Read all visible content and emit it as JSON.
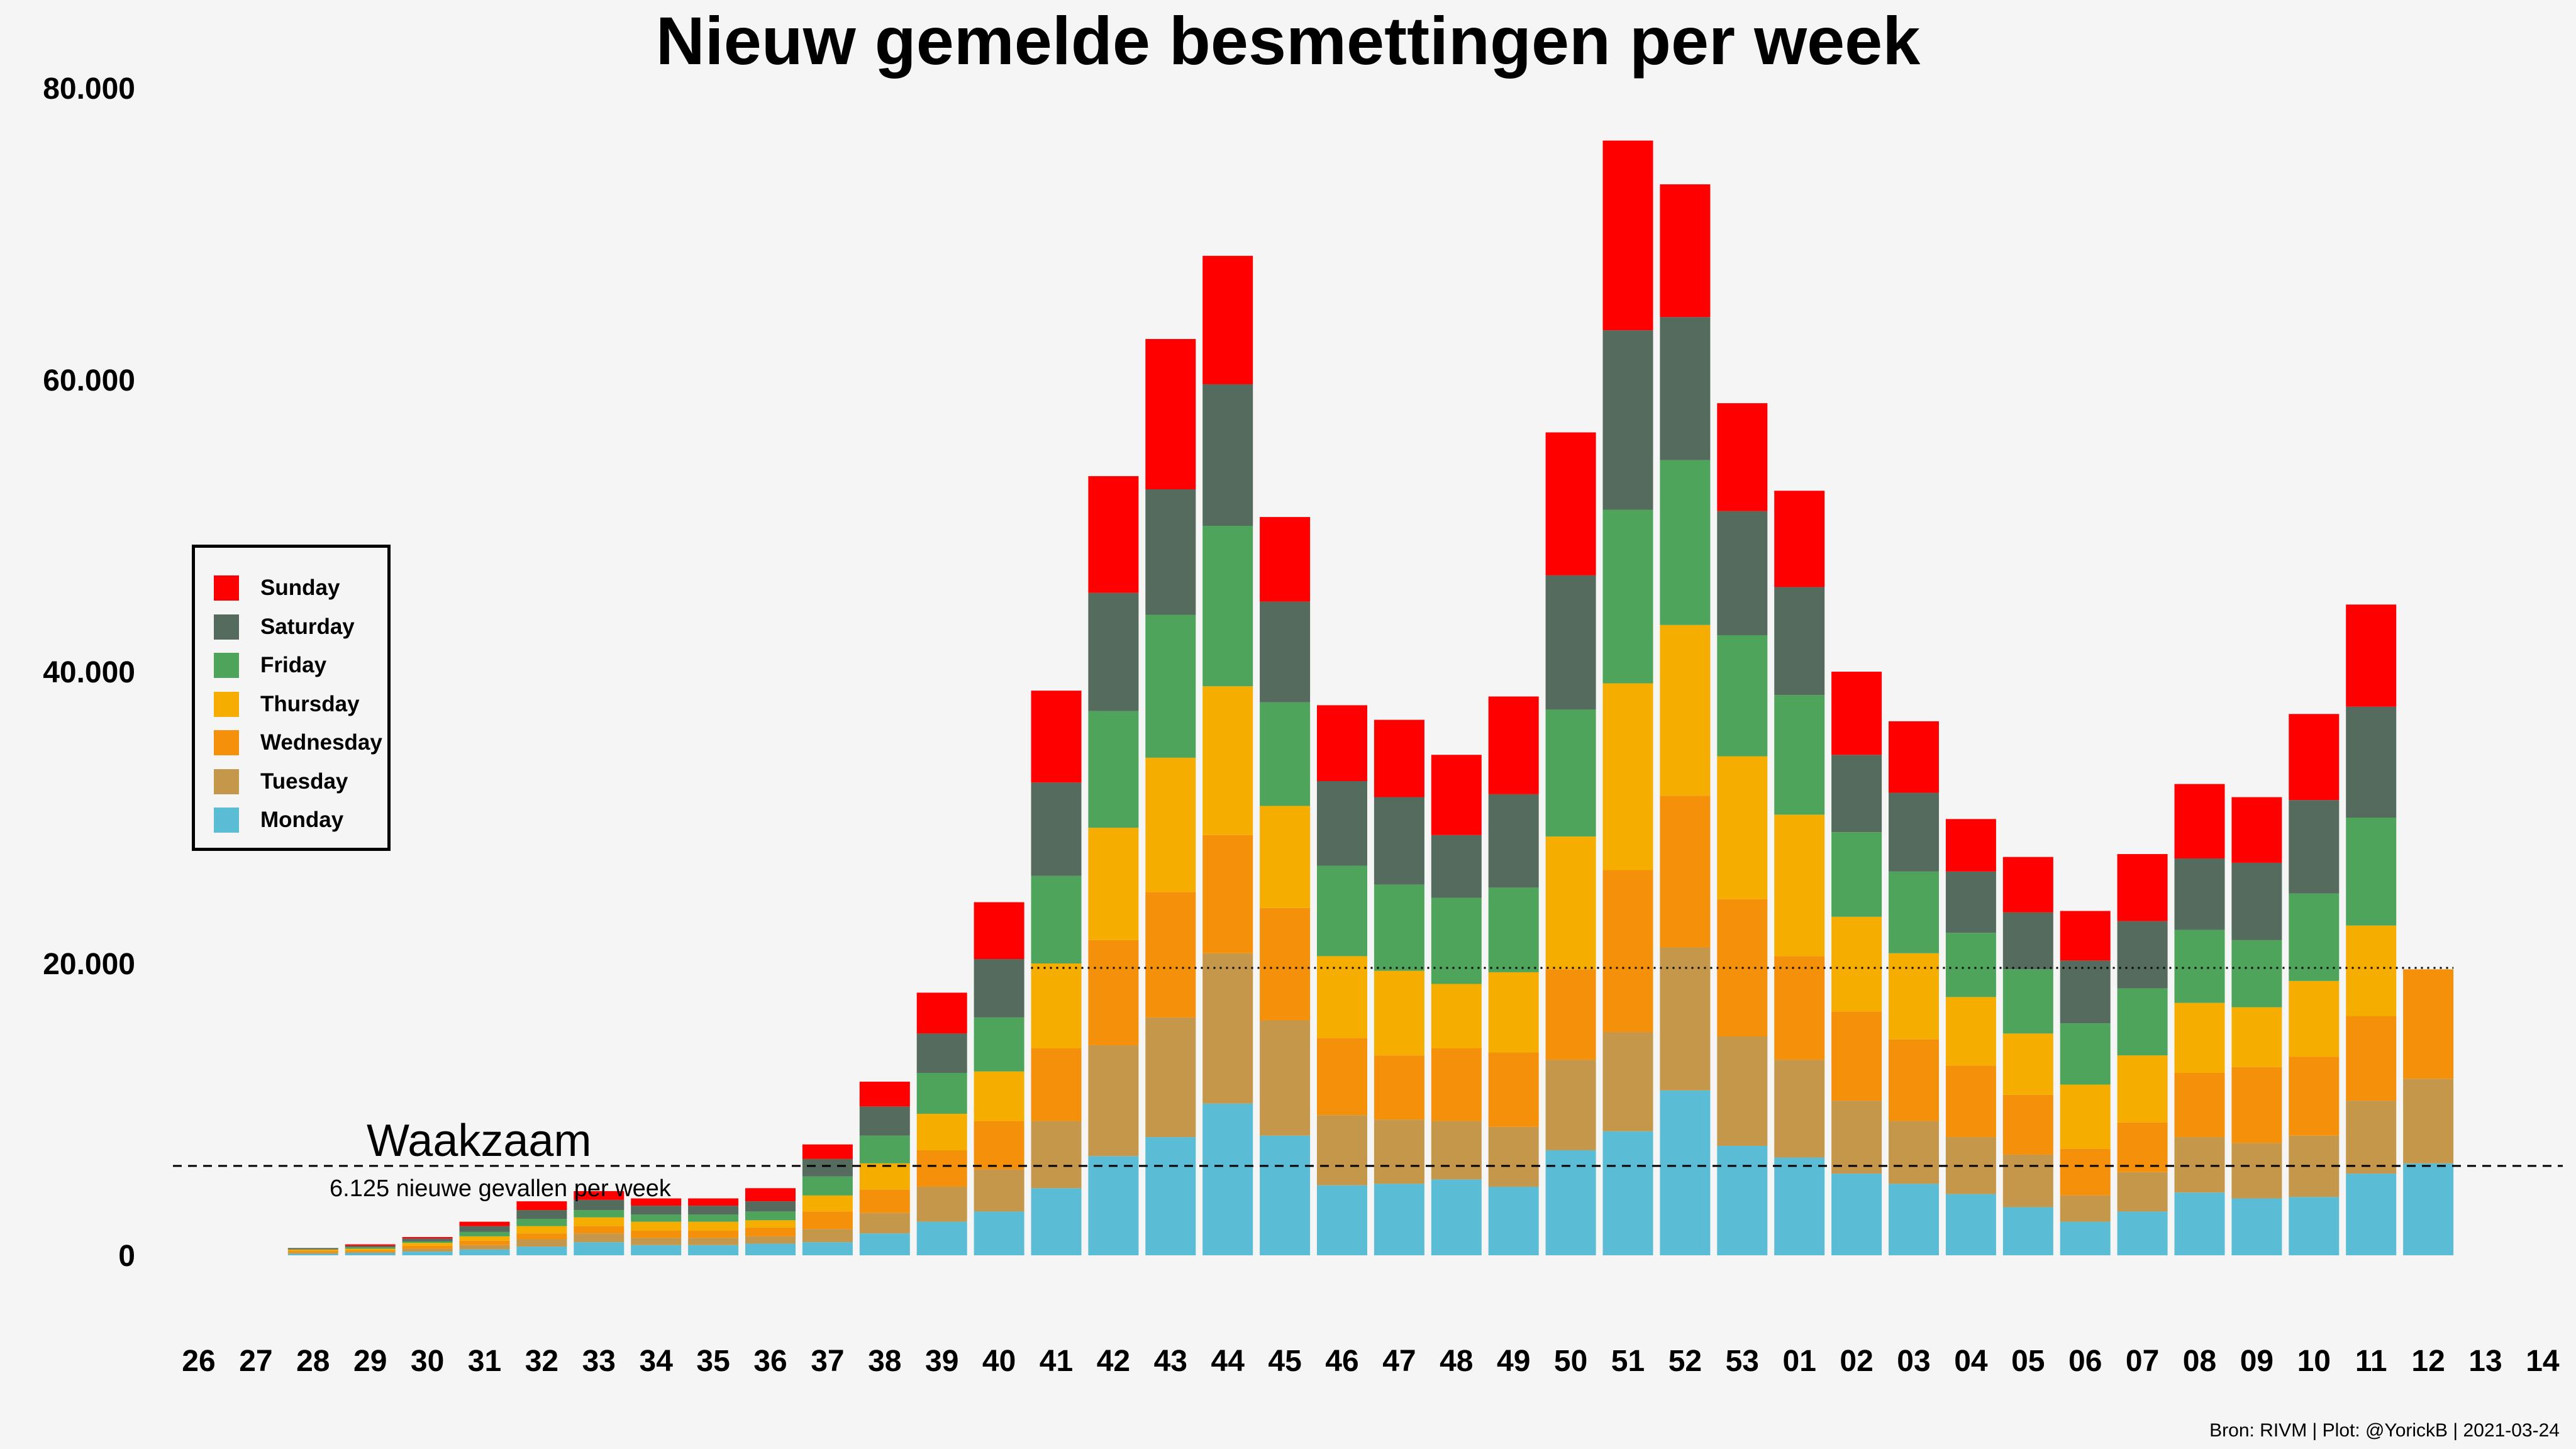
{
  "chart_data": {
    "type": "bar",
    "stacked": true,
    "title": "Nieuw gemelde besmettingen per week",
    "xlabel": "",
    "ylabel": "",
    "ylim": [
      0,
      80000
    ],
    "yticks": [
      {
        "value": 0,
        "label": "0"
      },
      {
        "value": 20000,
        "label": "20.000"
      },
      {
        "value": 40000,
        "label": "40.000"
      },
      {
        "value": 60000,
        "label": "60.000"
      },
      {
        "value": 80000,
        "label": "80.000"
      }
    ],
    "grid": false,
    "legend_position": "left",
    "categories": [
      "26",
      "27",
      "28",
      "29",
      "30",
      "31",
      "32",
      "33",
      "34",
      "35",
      "36",
      "37",
      "38",
      "39",
      "40",
      "41",
      "42",
      "43",
      "44",
      "45",
      "46",
      "47",
      "48",
      "49",
      "50",
      "51",
      "52",
      "53",
      "01",
      "02",
      "03",
      "04",
      "05",
      "06",
      "07",
      "08",
      "09",
      "10",
      "11",
      "12",
      "13",
      "14"
    ],
    "series": [
      {
        "name": "Monday",
        "color": "#5bbcd6",
        "values": [
          0,
          0,
          100,
          150,
          250,
          400,
          600,
          900,
          700,
          700,
          800,
          900,
          1500,
          2300,
          3000,
          4600,
          6800,
          8100,
          10400,
          8200,
          4800,
          4900,
          5200,
          4700,
          7200,
          8500,
          11300,
          7500,
          6700,
          5600,
          4900,
          4200,
          3300,
          2300,
          3000,
          4300,
          3900,
          4000,
          5600,
          6300,
          0,
          0
        ]
      },
      {
        "name": "Tuesday",
        "color": "#c5974a",
        "values": [
          0,
          0,
          100,
          100,
          200,
          300,
          500,
          600,
          500,
          500,
          500,
          900,
          1400,
          2400,
          2900,
          4600,
          7600,
          8200,
          10300,
          7900,
          4800,
          4400,
          4000,
          4100,
          6200,
          6800,
          9800,
          7500,
          6700,
          5000,
          4300,
          3900,
          3600,
          1800,
          2700,
          3800,
          3800,
          4200,
          5000,
          5800,
          0,
          0
        ]
      },
      {
        "name": "Wednesday",
        "color": "#f5900a",
        "values": [
          0,
          0,
          100,
          100,
          200,
          300,
          400,
          500,
          500,
          500,
          600,
          1200,
          1600,
          2500,
          3300,
          5000,
          7200,
          8600,
          8100,
          7700,
          5300,
          4400,
          5000,
          5100,
          6200,
          11100,
          10400,
          9400,
          7100,
          6100,
          5600,
          4900,
          4100,
          3200,
          3400,
          4400,
          5200,
          5400,
          5800,
          7500,
          0,
          0
        ]
      },
      {
        "name": "Thursday",
        "color": "#f5ae00",
        "values": [
          0,
          0,
          100,
          100,
          200,
          300,
          500,
          600,
          600,
          600,
          500,
          1100,
          1800,
          2500,
          3400,
          5800,
          7700,
          9200,
          10200,
          7000,
          5600,
          5800,
          4400,
          5500,
          9100,
          12800,
          11700,
          9800,
          9700,
          6500,
          5900,
          4700,
          4200,
          4400,
          4600,
          4800,
          4100,
          5200,
          6200,
          0,
          0,
          0
        ]
      },
      {
        "name": "Friday",
        "color": "#4ea45a",
        "values": [
          0,
          0,
          0,
          100,
          100,
          300,
          500,
          500,
          500,
          500,
          600,
          1300,
          1900,
          2800,
          3700,
          6000,
          8000,
          9800,
          11000,
          7100,
          6200,
          5900,
          5900,
          5800,
          8700,
          11900,
          11300,
          8300,
          8200,
          5800,
          5600,
          4400,
          4400,
          4200,
          4600,
          5000,
          4600,
          6000,
          7400,
          0,
          0,
          0
        ]
      },
      {
        "name": "Saturday",
        "color": "#556b5e",
        "values": [
          0,
          0,
          100,
          100,
          200,
          400,
          600,
          700,
          600,
          600,
          700,
          1200,
          2000,
          2700,
          4000,
          6400,
          8100,
          8600,
          9700,
          6900,
          5800,
          6000,
          4300,
          6400,
          9200,
          12300,
          9800,
          8500,
          7400,
          5300,
          5400,
          4200,
          3900,
          4300,
          4600,
          4900,
          5300,
          6400,
          7600,
          0,
          0,
          0
        ]
      },
      {
        "name": "Sunday",
        "color": "#ff0000",
        "values": [
          0,
          0,
          0,
          100,
          100,
          300,
          600,
          600,
          500,
          500,
          900,
          1000,
          1700,
          2800,
          3900,
          6300,
          8000,
          10300,
          8800,
          5800,
          5200,
          5300,
          5500,
          6700,
          9800,
          13000,
          9100,
          7400,
          6600,
          5700,
          4900,
          3600,
          3800,
          3400,
          4600,
          5100,
          4500,
          5900,
          7000,
          0,
          0,
          0
        ]
      }
    ],
    "reference_line": {
      "value": 6125,
      "style": "dashed",
      "label": "Waakzaam",
      "sublabel": "6.125 nieuwe gevallen per week"
    },
    "dotted_line": {
      "value": 19700,
      "from_category": "41",
      "to_category": "12",
      "style": "dotted"
    }
  },
  "footer": {
    "source": "Bron: RIVM | Plot: @YorickB |  2021-03-24"
  }
}
